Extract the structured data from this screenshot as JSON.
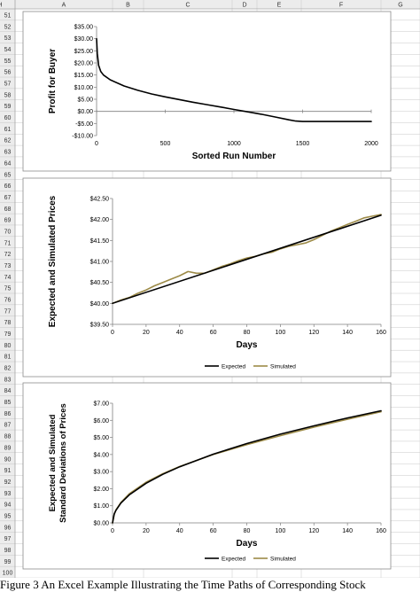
{
  "spreadsheet": {
    "columns": [
      "A",
      "B",
      "C",
      "D",
      "E",
      "F",
      "G",
      "H"
    ],
    "first_row": 51,
    "last_row": 100
  },
  "caption": "Figure 3   An Excel Example Illustrating the Time Paths of Corresponding Stock",
  "chart_data": [
    {
      "type": "line",
      "title": "",
      "xlabel": "Sorted Run Number",
      "ylabel": "Profit for Buyer",
      "xlim": [
        0,
        2000
      ],
      "ylim": [
        -10,
        35
      ],
      "xticks": [
        0,
        500,
        1000,
        1500,
        2000
      ],
      "xtick_labels": [
        "0",
        "500",
        "1000",
        "1500",
        "2000"
      ],
      "yticks": [
        35,
        30,
        25,
        20,
        15,
        10,
        5,
        0,
        -5,
        -10
      ],
      "ytick_labels": [
        "$35.00",
        "$30.00",
        "$25.00",
        "$20.00",
        "$15.00",
        "$10.00",
        "$5.00",
        "$0.00",
        "-$5.00",
        "-$10.00"
      ],
      "grid": false,
      "legend": "none",
      "series": [
        {
          "color": "#000000",
          "x": [
            0,
            5,
            15,
            30,
            50,
            100,
            200,
            300,
            400,
            500,
            600,
            700,
            800,
            900,
            1000,
            1100,
            1200,
            1300,
            1400,
            1450,
            1500,
            1600,
            1800,
            2000
          ],
          "y": [
            30,
            24,
            19,
            16.5,
            15,
            13,
            10.5,
            8.7,
            7.2,
            6,
            4.9,
            3.8,
            2.8,
            1.8,
            0.8,
            -0.2,
            -1.2,
            -2.3,
            -3.5,
            -4,
            -4.2,
            -4.2,
            -4.2,
            -4.2
          ]
        }
      ]
    },
    {
      "type": "line",
      "title": "",
      "xlabel": "Days",
      "ylabel": "Expected and Simulated Prices",
      "xlim": [
        0,
        160
      ],
      "ylim": [
        39.5,
        42.5
      ],
      "xticks": [
        0,
        20,
        40,
        60,
        80,
        100,
        120,
        140,
        160
      ],
      "xtick_labels": [
        "0",
        "20",
        "40",
        "60",
        "80",
        "100",
        "120",
        "140",
        "160"
      ],
      "yticks": [
        42.5,
        42,
        41.5,
        41,
        40.5,
        40,
        39.5
      ],
      "ytick_labels": [
        "$42.50",
        "$42.00",
        "$41.50",
        "$41.00",
        "$40.50",
        "$40.00",
        "$39.50"
      ],
      "grid": false,
      "legend": "bottom",
      "series": [
        {
          "name": "Expected",
          "color": "#000000",
          "x": [
            0,
            160
          ],
          "y": [
            40.0,
            42.1
          ]
        },
        {
          "name": "Simulated",
          "color": "#9c8a47",
          "x": [
            0,
            5,
            10,
            15,
            20,
            25,
            30,
            35,
            40,
            45,
            50,
            55,
            60,
            65,
            70,
            75,
            80,
            85,
            90,
            95,
            100,
            105,
            110,
            115,
            120,
            125,
            130,
            135,
            140,
            145,
            150,
            155,
            160
          ],
          "y": [
            40.0,
            40.08,
            40.14,
            40.24,
            40.32,
            40.42,
            40.5,
            40.58,
            40.66,
            40.76,
            40.72,
            40.72,
            40.8,
            40.88,
            40.94,
            41.02,
            41.08,
            41.12,
            41.18,
            41.22,
            41.3,
            41.36,
            41.4,
            41.44,
            41.52,
            41.62,
            41.72,
            41.8,
            41.88,
            41.96,
            42.04,
            42.08,
            42.12
          ]
        }
      ]
    },
    {
      "type": "line",
      "title": "",
      "xlabel": "Days",
      "ylabel": "Expected and Simulated Standard Deviations of Prices",
      "ylabel_lines": [
        "Expected and Simulated",
        "Standard Deviations of Prices"
      ],
      "xlim": [
        0,
        160
      ],
      "ylim": [
        0,
        7
      ],
      "xticks": [
        0,
        20,
        40,
        60,
        80,
        100,
        120,
        140,
        160
      ],
      "xtick_labels": [
        "0",
        "20",
        "40",
        "60",
        "80",
        "100",
        "120",
        "140",
        "160"
      ],
      "yticks": [
        7,
        6,
        5,
        4,
        3,
        2,
        1,
        0
      ],
      "ytick_labels": [
        "$7.00",
        "$6.00",
        "$5.00",
        "$4.00",
        "$3.00",
        "$2.00",
        "$1.00",
        "$0.00"
      ],
      "grid": false,
      "legend": "bottom",
      "series": [
        {
          "name": "Expected",
          "color": "#000000",
          "x": [
            0,
            1,
            2,
            5,
            10,
            20,
            30,
            40,
            60,
            80,
            100,
            120,
            140,
            160
          ],
          "y": [
            0,
            0.52,
            0.73,
            1.16,
            1.64,
            2.32,
            2.84,
            3.28,
            4.02,
            4.64,
            5.19,
            5.68,
            6.14,
            6.56
          ]
        },
        {
          "name": "Simulated",
          "color": "#9c8a47",
          "x": [
            0,
            1,
            2,
            5,
            10,
            20,
            30,
            40,
            60,
            80,
            100,
            120,
            140,
            160
          ],
          "y": [
            0,
            0.5,
            0.75,
            1.2,
            1.7,
            2.38,
            2.88,
            3.3,
            4.0,
            4.58,
            5.1,
            5.6,
            6.06,
            6.5
          ]
        }
      ]
    }
  ]
}
